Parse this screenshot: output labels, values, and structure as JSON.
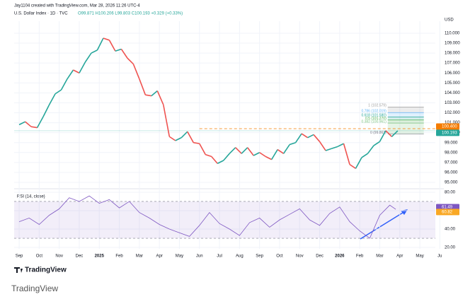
{
  "header": {
    "author": "Jay1104 created with TradingView.com, Mar 28, 2026 11:26 UTC-4",
    "currency": "USD"
  },
  "footer": {
    "logo": "TradingView",
    "caption": "TradingView"
  },
  "chart_data": [
    {
      "type": "line",
      "title": "U.S. Dollar Index · 1D · TVC",
      "ohlc": "O99.871 H100.206 L99.803 C100.193 +0.329 (+0.33%)",
      "x": [
        0,
        0.3,
        0.6,
        0.9,
        1.2,
        1.5,
        1.8,
        2.1,
        2.4,
        2.7,
        3.0,
        3.3,
        3.6,
        3.9,
        4.2,
        4.5,
        4.8,
        5.1,
        5.4,
        5.7,
        6.0,
        6.3,
        6.6,
        6.9,
        7.2,
        7.5,
        7.8,
        8.1,
        8.4,
        8.7,
        9.0,
        9.3,
        9.6,
        9.9,
        10.2,
        10.5,
        10.8,
        11.1,
        11.4,
        11.7,
        12.0,
        12.3,
        12.6,
        12.9,
        13.2,
        13.5,
        13.8,
        14.1,
        14.4,
        14.7,
        15.0,
        15.3,
        15.6,
        15.9,
        16.2,
        16.5,
        16.8,
        17.1,
        17.4,
        17.7,
        18.0,
        18.3,
        18.6,
        18.9
      ],
      "series": [
        {
          "up_color": "#26a69a",
          "down_color": "#ef5350",
          "values": [
            100.8,
            101.1,
            100.6,
            100.5,
            101.6,
            102.8,
            103.9,
            104.3,
            105.4,
            106.3,
            106.0,
            107.1,
            108.0,
            108.3,
            109.5,
            109.3,
            108.2,
            108.4,
            107.5,
            106.9,
            105.4,
            103.8,
            103.7,
            104.2,
            102.8,
            99.6,
            99.2,
            99.5,
            100.1,
            99.0,
            98.9,
            97.8,
            97.6,
            96.9,
            97.2,
            97.9,
            98.5,
            97.9,
            98.5,
            97.7,
            98.0,
            97.6,
            97.3,
            98.3,
            97.9,
            98.8,
            99.0,
            99.9,
            99.5,
            99.8,
            99.1,
            98.2,
            98.4,
            98.6,
            98.9,
            96.8,
            96.4,
            97.5,
            97.9,
            98.7,
            99.1,
            100.2,
            99.6,
            100.193
          ]
        }
      ],
      "ylim": [
        94.5,
        110.85
      ],
      "yticks": [
        {
          "value": 95,
          "label": "95.000"
        },
        {
          "value": 96,
          "label": "96.000"
        },
        {
          "value": 97,
          "label": "97.000"
        },
        {
          "value": 98,
          "label": "98.000"
        },
        {
          "value": 99,
          "label": "99.000"
        },
        {
          "value": 100,
          "label": "100.000"
        },
        {
          "value": 101,
          "label": "101.000"
        },
        {
          "value": 102,
          "label": "102.000"
        },
        {
          "value": 103,
          "label": "103.000"
        },
        {
          "value": 104,
          "label": "104.000"
        },
        {
          "value": 105,
          "label": "105.000"
        },
        {
          "value": 106,
          "label": "106.000"
        },
        {
          "value": 107,
          "label": "107.000"
        },
        {
          "value": 108,
          "label": "108.000"
        },
        {
          "value": 109,
          "label": "109.000"
        },
        {
          "value": 110,
          "label": "110.000"
        }
      ],
      "xlim": [
        -0.25,
        21.2
      ],
      "xticks": [
        {
          "value": 0,
          "label": "Sep"
        },
        {
          "value": 1,
          "label": "Oct"
        },
        {
          "value": 2,
          "label": "Nov"
        },
        {
          "value": 3,
          "label": "Dec"
        },
        {
          "value": 4,
          "label": "2025"
        },
        {
          "value": 5,
          "label": "Feb"
        },
        {
          "value": 6,
          "label": "Mar"
        },
        {
          "value": 7,
          "label": "Apr"
        },
        {
          "value": 8,
          "label": "May"
        },
        {
          "value": 9,
          "label": "Jun"
        },
        {
          "value": 10,
          "label": "Jul"
        },
        {
          "value": 11,
          "label": "Aug"
        },
        {
          "value": 12,
          "label": "Sep"
        },
        {
          "value": 13,
          "label": "Oct"
        },
        {
          "value": 14,
          "label": "Nov"
        },
        {
          "value": 15,
          "label": "Dec"
        },
        {
          "value": 16,
          "label": "2026"
        },
        {
          "value": 17,
          "label": "Feb"
        },
        {
          "value": 18,
          "label": "Mar"
        },
        {
          "value": 19,
          "label": "Apr"
        },
        {
          "value": 20,
          "label": "May"
        },
        {
          "value": 21,
          "label": "Ju"
        }
      ],
      "fib": [
        {
          "value": 102.579,
          "label": "1 (102.579)",
          "color": "#9e9e9e"
        },
        {
          "value": 102.019,
          "label": "0.786 (102.019)",
          "color": "#64b5f6"
        },
        {
          "value": 101.58,
          "label": "0.618 (101.580)",
          "color": "#26a69a"
        },
        {
          "value": 101.27,
          "label": "0.5 (101.270)",
          "color": "#4caf50"
        },
        {
          "value": 100.961,
          "label": "0.382 (100.961)",
          "color": "#81c784"
        },
        {
          "value": 99.863,
          "label": "0 (99.863)",
          "color": "#787b86"
        }
      ],
      "price_labels": [
        {
          "value": 100.4,
          "label": "100.400",
          "color": "#f57c00"
        },
        {
          "value": 100.193,
          "label": "100.193",
          "color": "#26a69a"
        }
      ]
    },
    {
      "type": "line",
      "title": "RSI (14, close)",
      "x": [
        0,
        0.5,
        1,
        1.5,
        2,
        2.5,
        3,
        3.5,
        4,
        4.5,
        5,
        5.5,
        6,
        6.5,
        7,
        7.5,
        8,
        8.5,
        9,
        9.5,
        10,
        10.5,
        11,
        11.5,
        12,
        12.5,
        13,
        13.5,
        14,
        14.5,
        15,
        15.5,
        16,
        16.5,
        17,
        17.5,
        18,
        18.5,
        18.8
      ],
      "series": [
        {
          "color": "#7e57c2",
          "values": [
            48,
            52,
            45,
            55,
            62,
            74,
            70,
            76,
            68,
            72,
            63,
            70,
            58,
            52,
            45,
            40,
            36,
            32,
            44,
            58,
            46,
            40,
            33,
            47,
            52,
            42,
            50,
            56,
            62,
            50,
            44,
            57,
            64,
            48,
            38,
            30,
            55,
            66,
            61.49
          ]
        }
      ],
      "bands": [
        30,
        70
      ],
      "ylim": [
        18.5,
        81.5
      ],
      "yticks": [
        {
          "value": 20,
          "label": "20.00"
        },
        {
          "value": 40,
          "label": "40.00"
        },
        {
          "value": 60,
          "label": "60.00"
        },
        {
          "value": 80,
          "label": "80.00"
        }
      ],
      "price_labels": [
        {
          "value": 61.49,
          "label": "61.49",
          "color": "#7e57c2"
        },
        {
          "value": 60.82,
          "label": "60.82",
          "color": "#f9a825"
        }
      ]
    }
  ]
}
